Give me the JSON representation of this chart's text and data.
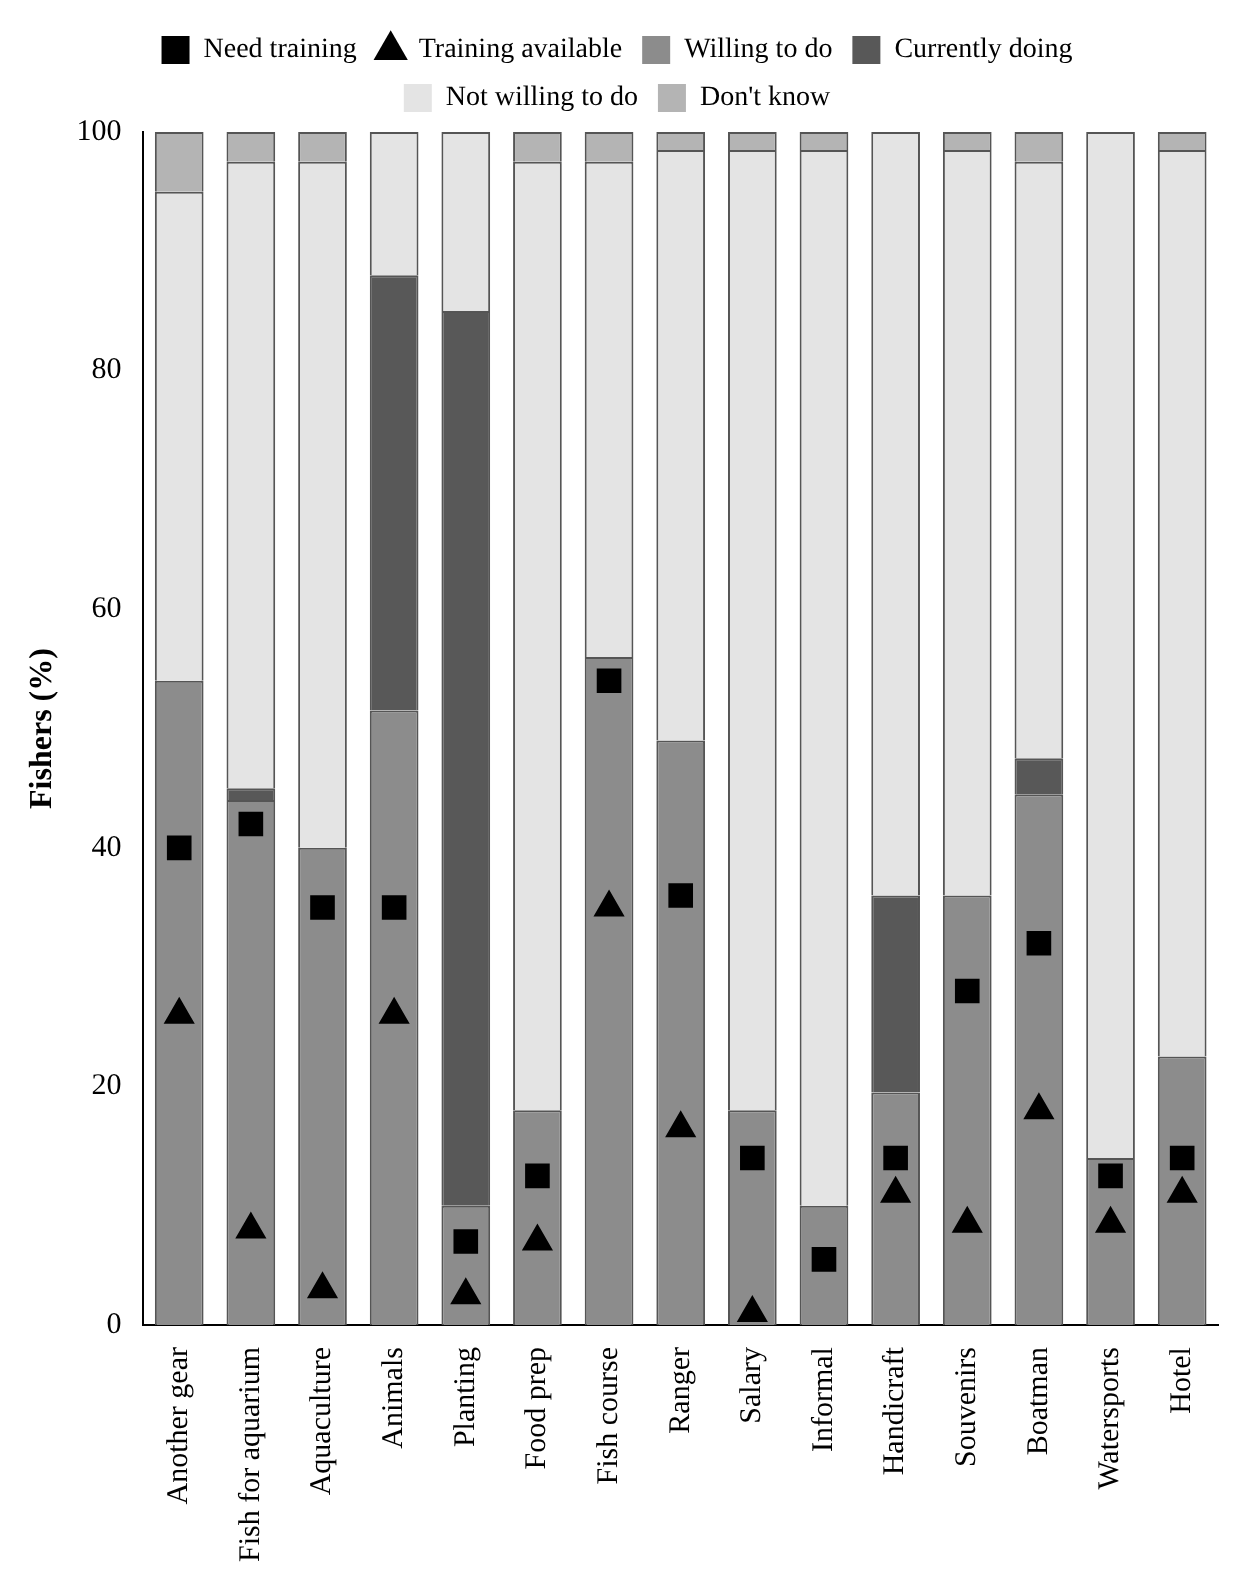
{
  "chart_data": {
    "type": "bar",
    "ylabel": "Fishers (%)",
    "stacked": true,
    "grid": false,
    "legend": "top",
    "ylim": [
      0,
      100
    ],
    "yticks": [
      0,
      20,
      40,
      60,
      80,
      100
    ],
    "categories": [
      "Another gear",
      "Fish for aquarium",
      "Aquaculture",
      "Animals",
      "Planting",
      "Food prep",
      "Fish course",
      "Ranger",
      "Salary",
      "Informal",
      "Handicraft",
      "Souvenirs",
      "Boatman",
      "Watersports",
      "Hotel"
    ],
    "series": [
      {
        "name": "Willing to do",
        "color": "#8c8c8c",
        "values": [
          54,
          44,
          40,
          51.5,
          10,
          18,
          56,
          49,
          18,
          10,
          19.5,
          36,
          44.5,
          14,
          22.5
        ]
      },
      {
        "name": "Currently doing",
        "color": "#585858",
        "values": [
          0,
          1,
          0,
          36.5,
          75,
          0,
          0,
          0,
          0,
          0,
          16.5,
          0,
          3,
          0,
          0
        ]
      },
      {
        "name": "Not willing to do",
        "color": "#e4e4e4",
        "values": [
          41,
          52.5,
          57.5,
          12,
          15,
          79.5,
          41.5,
          49.5,
          80.5,
          88.5,
          64,
          62.5,
          50,
          86,
          76
        ]
      },
      {
        "name": "Don't know",
        "color": "#b4b4b4",
        "values": [
          5,
          2.5,
          2.5,
          0,
          0,
          2.5,
          2.5,
          1.5,
          1.5,
          1.5,
          0,
          1.5,
          2.5,
          0,
          1.5
        ]
      },
      {
        "name": "Need training",
        "type": "scatter",
        "marker": "square",
        "color": "#000000",
        "x": [
          "Another gear",
          "Fish for aquarium",
          "Aquaculture",
          "Animals",
          "Planting",
          "Food prep",
          "Fish course",
          "Ranger",
          "Salary",
          "Informal",
          "Handicraft",
          "Souvenirs",
          "Boatman",
          "Watersports",
          "Hotel"
        ],
        "values": [
          40,
          42,
          35,
          35,
          7,
          12.5,
          54,
          36,
          14,
          5.5,
          14,
          28,
          32,
          12.5,
          14
        ]
      },
      {
        "name": "Training available",
        "type": "scatter",
        "marker": "triangle",
        "color": "#000000",
        "x": [
          "Another gear",
          "Fish for aquarium",
          "Aquaculture",
          "Animals",
          "Planting",
          "Food prep",
          "Fish course",
          "Ranger",
          "Salary",
          "Informal",
          "Handicraft",
          "Souvenirs",
          "Boatman",
          "Watersports",
          "Hotel"
        ],
        "values": [
          26,
          8,
          3,
          26,
          2.5,
          7,
          35,
          16.5,
          1,
          null,
          11,
          8.5,
          18,
          8.5,
          11
        ]
      }
    ]
  }
}
